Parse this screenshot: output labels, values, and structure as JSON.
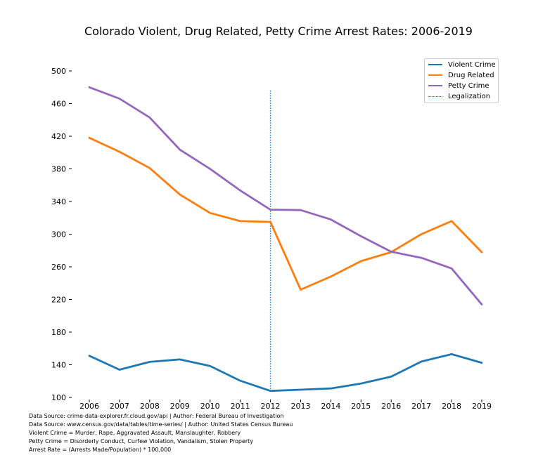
{
  "chart_data": {
    "type": "line",
    "title": "Colorado Violent, Drug Related, Petty Crime Arrest Rates: 2006-2019",
    "xlabel": "",
    "ylabel": "",
    "x": [
      2006,
      2007,
      2008,
      2009,
      2010,
      2011,
      2012,
      2013,
      2014,
      2015,
      2016,
      2017,
      2018,
      2019
    ],
    "ylim": [
      100,
      500
    ],
    "yticks": [
      100,
      140,
      180,
      220,
      260,
      300,
      340,
      380,
      420,
      460,
      500
    ],
    "grid": false,
    "legend_position": "top-right",
    "series": [
      {
        "name": "Violent Crime",
        "color": "#1f77b4",
        "values": [
          151,
          134,
          143.5,
          146.5,
          138.5,
          120.5,
          108,
          109.5,
          111,
          117,
          125.5,
          144,
          153,
          142.5
        ]
      },
      {
        "name": "Drug Related",
        "color": "#ff7f0e",
        "values": [
          418,
          401,
          381,
          348.5,
          326,
          316,
          315,
          232,
          248,
          267,
          278,
          300,
          316,
          278
        ]
      },
      {
        "name": "Petty Crime",
        "color": "#9467bd",
        "values": [
          480,
          466,
          443,
          403.5,
          380,
          353.5,
          330,
          329.5,
          318,
          297.5,
          278.5,
          271,
          258,
          214
        ]
      }
    ],
    "annotations": [
      {
        "name": "Legalization",
        "type": "vertical-dotted-line",
        "x": 2012,
        "color": "#1f77b4",
        "y_top": 476
      }
    ],
    "footnotes": [
      "Data Source: crime-data-explorer.fr.cloud.gov/api | Author: Federal Bureau of Investigation",
      "Data Source: www.census.gov/data/tables/time-series/ | Author: United States Census Bureau",
      "Violent Crime = Murder, Rape, Aggravated Assault, Manslaughter, Robbery",
      "Petty Crime = Disorderly Conduct, Curfew Violation, Vandalism, Stolen Property",
      "Arrest Rate = (Arrests Made/Population) * 100,000"
    ]
  }
}
